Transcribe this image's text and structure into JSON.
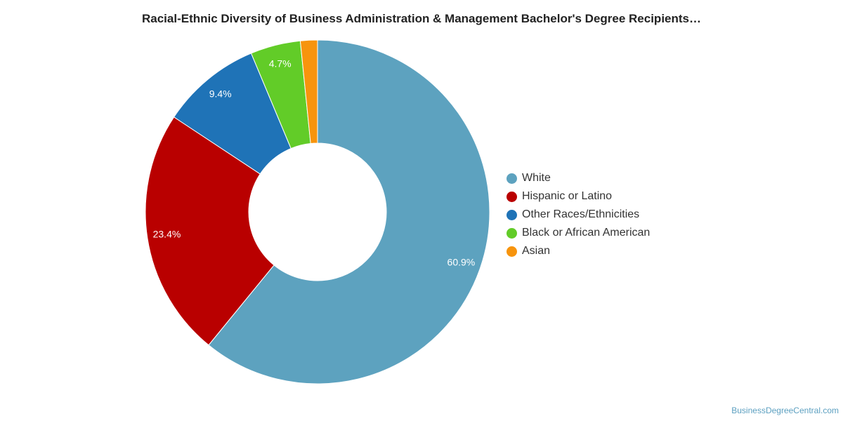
{
  "chart_data": {
    "type": "pie",
    "style": "donut",
    "title": "Racial-Ethnic Diversity of Business Administration & Management Bachelor's Degree Recipients…",
    "legend_position": "right",
    "slices": [
      {
        "name": "White",
        "value": 60.9,
        "label": "60.9%",
        "color": "#5da2bf"
      },
      {
        "name": "Hispanic or Latino",
        "value": 23.4,
        "label": "23.4%",
        "color": "#b90000"
      },
      {
        "name": "Other Races/Ethnicities",
        "value": 9.4,
        "label": "9.4%",
        "color": "#1f73b7"
      },
      {
        "name": "Black or African American",
        "value": 4.7,
        "label": "4.7%",
        "color": "#62cc28"
      },
      {
        "name": "Asian",
        "value": 1.6,
        "label": "",
        "color": "#f7940d"
      }
    ]
  },
  "credit": "BusinessDegreeCentral.com"
}
